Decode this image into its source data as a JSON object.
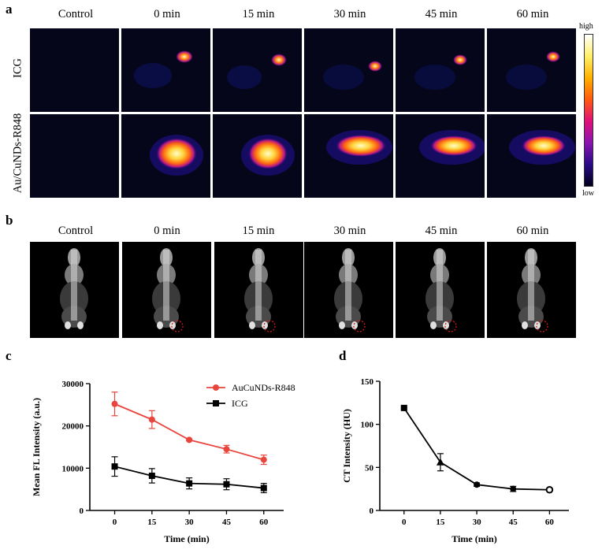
{
  "panels": {
    "a": {
      "letter": "a",
      "columns": [
        "Control",
        "0 min",
        "15 min",
        "30 min",
        "45 min",
        "60 min"
      ],
      "rows": [
        "ICG",
        "Au/CuNDs-R848"
      ],
      "colorbar": {
        "high": "high",
        "low": "low",
        "colors": [
          "#ffffff",
          "#fff06a",
          "#ffb000",
          "#ff5a10",
          "#e0107a",
          "#8a14b0",
          "#2a0a88",
          "#000018"
        ]
      }
    },
    "b": {
      "letter": "b",
      "columns": [
        "Control",
        "0 min",
        "15 min",
        "30 min",
        "45 min",
        "60 min"
      ]
    },
    "c": {
      "letter": "c"
    },
    "d": {
      "letter": "d"
    }
  },
  "chart_data": [
    {
      "type": "line",
      "panel": "c",
      "xlabel": "Time (min)",
      "ylabel": "Mean FL Intensity (a.u.)",
      "x": [
        0,
        15,
        30,
        45,
        60
      ],
      "xticks": [
        "0",
        "15",
        "30",
        "45",
        "60"
      ],
      "yticks": [
        "0",
        "10000",
        "20000",
        "30000"
      ],
      "ylim": [
        0,
        30000
      ],
      "xlim": [
        -10,
        68
      ],
      "legend_position": "top-right",
      "series": [
        {
          "name": "AuCuNDs-R848",
          "color": "#e8453c",
          "marker": "circle",
          "values": [
            25200,
            21500,
            16700,
            14500,
            12000
          ],
          "errors": [
            2800,
            2100,
            200,
            900,
            1100
          ]
        },
        {
          "name": "ICG",
          "color": "#000000",
          "marker": "square",
          "values": [
            10400,
            8200,
            6400,
            6200,
            5300
          ],
          "errors": [
            2300,
            1700,
            1300,
            1300,
            1100
          ]
        }
      ]
    },
    {
      "type": "line",
      "panel": "d",
      "xlabel": "Time (min)",
      "ylabel": "CT Intensity (HU)",
      "x": [
        0,
        15,
        30,
        45,
        60
      ],
      "xticks": [
        "0",
        "15",
        "30",
        "45",
        "60"
      ],
      "yticks": [
        "0",
        "50",
        "100",
        "150"
      ],
      "ylim": [
        0,
        150
      ],
      "xlim": [
        -10,
        68
      ],
      "series": [
        {
          "color": "#000000",
          "marker": "mixed",
          "markers": [
            "square",
            "triangle",
            "circle",
            "circle",
            "circle-open"
          ],
          "values": [
            119,
            56,
            30,
            25,
            24
          ],
          "errors": [
            1,
            10,
            2,
            3,
            1
          ]
        }
      ]
    }
  ]
}
